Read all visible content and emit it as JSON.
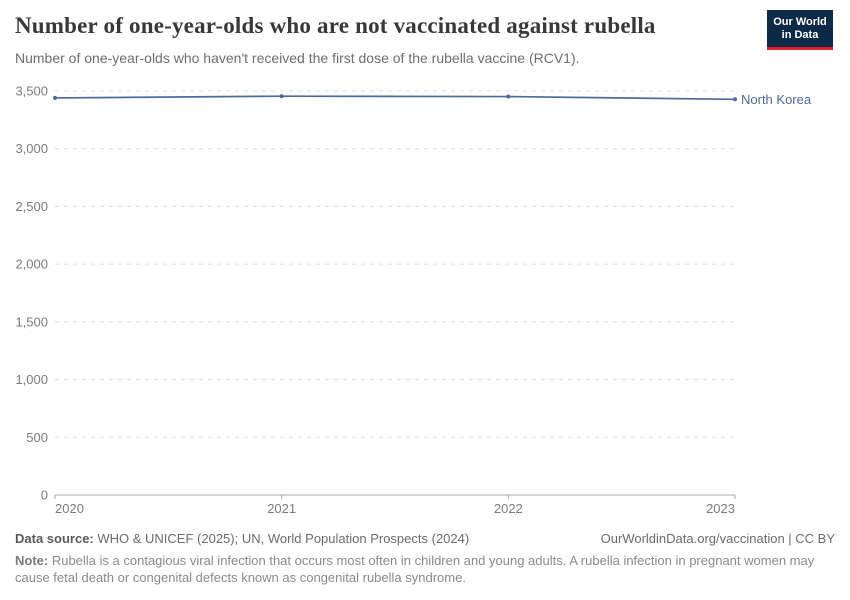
{
  "header": {
    "title": "Number of one-year-olds who are not vaccinated against rubella",
    "subtitle": "Number of one-year-olds who haven't received the first dose of the rubella vaccine (RCV1).",
    "logo": {
      "line1": "Our World",
      "line2": "in Data",
      "bg_color": "#0c2948",
      "stripe_color": "#d8232a"
    }
  },
  "chart_data": {
    "type": "line",
    "title": "Number of one-year-olds who are not vaccinated against rubella",
    "x": [
      2020,
      2021,
      2022,
      2023
    ],
    "xtick_labels": [
      "2020",
      "2021",
      "2022",
      "2023"
    ],
    "series": [
      {
        "name": "North Korea",
        "values": [
          3440,
          3455,
          3452,
          3428
        ],
        "color": "#4c6a9c"
      }
    ],
    "ylim": [
      0,
      3500
    ],
    "yticks": [
      0,
      500,
      1000,
      1500,
      2000,
      2500,
      3000,
      3500
    ],
    "ytick_labels": [
      "0",
      "500",
      "1,000",
      "1,500",
      "2,000",
      "2,500",
      "3,000",
      "3,500"
    ],
    "grid": "horizontal-dashed",
    "legend_position": "end-of-line"
  },
  "footer": {
    "datasource_label": "Data source:",
    "datasource_text": " WHO & UNICEF (2025); UN, World Population Prospects (2024)",
    "attribution": "OurWorldinData.org/vaccination | CC BY",
    "note_label": "Note:",
    "note_text": " Rubella is a contagious viral infection that occurs most often in children and young adults. A rubella infection in pregnant women may cause fetal death or congenital defects known as congenital rubella syndrome."
  },
  "colors": {
    "line": "#4c6a9c",
    "grid": "#dcdcdc",
    "axis": "#a8a8a8",
    "tick_text": "#7b7b7b",
    "title_text": "#383838",
    "logo_bg": "#0c2948",
    "logo_stripe": "#d8232a"
  }
}
